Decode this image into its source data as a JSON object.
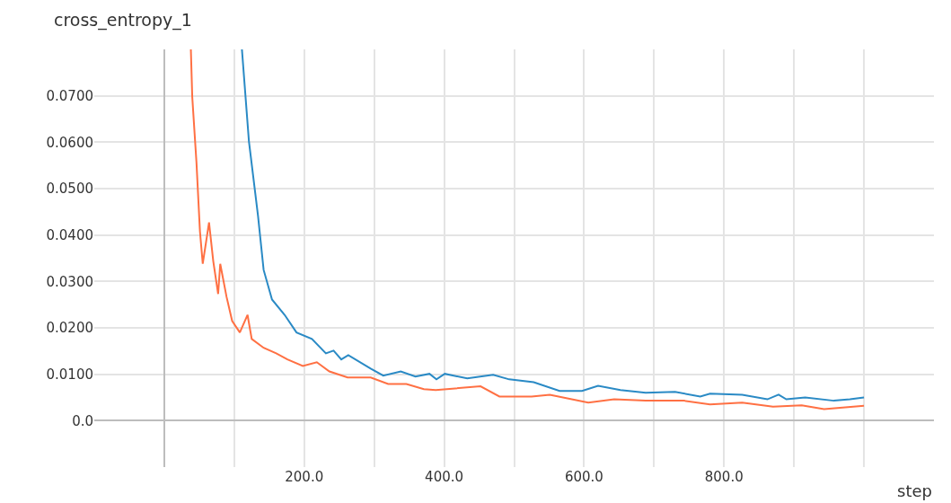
{
  "chart_data": {
    "type": "line",
    "title": "cross_entropy_1",
    "xlabel": "step",
    "xlim": [
      -100,
      1100
    ],
    "ylim": [
      -0.01,
      0.08
    ],
    "xticks": [
      {
        "value": 0,
        "label": null
      },
      {
        "value": 100,
        "label": null
      },
      {
        "value": 200,
        "label": "200.0"
      },
      {
        "value": 300,
        "label": null
      },
      {
        "value": 400,
        "label": "400.0"
      },
      {
        "value": 500,
        "label": null
      },
      {
        "value": 600,
        "label": "600.0"
      },
      {
        "value": 700,
        "label": null
      },
      {
        "value": 800,
        "label": "800.0"
      },
      {
        "value": 900,
        "label": null
      },
      {
        "value": 1000,
        "label": null
      }
    ],
    "yticks": [
      {
        "value": 0,
        "label": "0.0"
      },
      {
        "value": 0.01,
        "label": "0.0100"
      },
      {
        "value": 0.02,
        "label": "0.0200"
      },
      {
        "value": 0.03,
        "label": "0.0300"
      },
      {
        "value": 0.04,
        "label": "0.0400"
      },
      {
        "value": 0.05,
        "label": "0.0500"
      },
      {
        "value": 0.06,
        "label": "0.0600"
      },
      {
        "value": 0.07,
        "label": "0.0700"
      }
    ],
    "grid": true,
    "series": [
      {
        "color": "#2a8ac5",
        "x": [
          111,
          121,
          134,
          142,
          154,
          172,
          189,
          211,
          231,
          242,
          253,
          263,
          295,
          313,
          338,
          359,
          379,
          389,
          401,
          433,
          470,
          493,
          528,
          565,
          597,
          620,
          652,
          688,
          730,
          766,
          780,
          826,
          862,
          878,
          889,
          916,
          957,
          980,
          1000
        ],
        "values": [
          0.08,
          0.0602,
          0.0441,
          0.0325,
          0.0261,
          0.0228,
          0.019,
          0.0176,
          0.0145,
          0.0151,
          0.0132,
          0.0141,
          0.0112,
          0.0097,
          0.0106,
          0.0095,
          0.0101,
          0.0089,
          0.0101,
          0.0091,
          0.0099,
          0.0089,
          0.0083,
          0.0064,
          0.0064,
          0.0075,
          0.0066,
          0.006,
          0.0062,
          0.0052,
          0.0058,
          0.0056,
          0.0046,
          0.0056,
          0.0046,
          0.005,
          0.0043,
          0.0046,
          0.005
        ]
      },
      {
        "color": "#ff7043",
        "x": [
          38,
          40,
          46,
          51,
          55,
          64,
          70,
          77,
          80,
          89,
          97,
          108,
          119,
          125,
          142,
          160,
          176,
          198,
          218,
          236,
          262,
          295,
          320,
          346,
          371,
          388,
          452,
          479,
          525,
          551,
          606,
          643,
          688,
          743,
          780,
          826,
          870,
          911,
          943,
          1000
        ],
        "values": [
          0.08,
          0.0698,
          0.0557,
          0.0408,
          0.0338,
          0.0427,
          0.0344,
          0.0273,
          0.0338,
          0.0267,
          0.0215,
          0.019,
          0.0228,
          0.0176,
          0.0157,
          0.0145,
          0.0132,
          0.0118,
          0.0126,
          0.0106,
          0.0093,
          0.0093,
          0.0079,
          0.0079,
          0.0068,
          0.0066,
          0.0074,
          0.0052,
          0.0052,
          0.0056,
          0.0039,
          0.0046,
          0.0043,
          0.0043,
          0.0035,
          0.0039,
          0.003,
          0.0033,
          0.0025,
          0.0032
        ]
      }
    ]
  }
}
